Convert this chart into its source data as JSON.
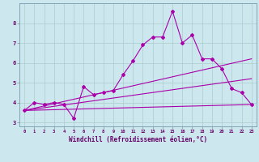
{
  "xlabel": "Windchill (Refroidissement éolien,°C)",
  "bg_color": "#cce8ee",
  "line_color": "#aa00aa",
  "grid_color": "#aacccc",
  "xlim": [
    -0.5,
    23.5
  ],
  "ylim": [
    2.8,
    9.0
  ],
  "xticks": [
    0,
    1,
    2,
    3,
    4,
    5,
    6,
    7,
    8,
    9,
    10,
    11,
    12,
    13,
    14,
    15,
    16,
    17,
    18,
    19,
    20,
    21,
    22,
    23
  ],
  "yticks": [
    3,
    4,
    5,
    6,
    7,
    8
  ],
  "line1_x": [
    0,
    1,
    2,
    3,
    4,
    5,
    6,
    7,
    8,
    9,
    10,
    11,
    12,
    13,
    14,
    15,
    16,
    17,
    18,
    19,
    20,
    21,
    22,
    23
  ],
  "line1_y": [
    3.6,
    4.0,
    3.9,
    4.0,
    3.9,
    3.2,
    4.8,
    4.4,
    4.5,
    4.6,
    5.4,
    6.1,
    6.9,
    7.3,
    7.3,
    8.6,
    7.0,
    7.4,
    6.2,
    6.2,
    5.7,
    4.7,
    4.5,
    3.9
  ],
  "line2_x": [
    0,
    23
  ],
  "line2_y": [
    3.6,
    3.9
  ],
  "line3_x": [
    0,
    23
  ],
  "line3_y": [
    3.6,
    5.2
  ],
  "line4_x": [
    0,
    23
  ],
  "line4_y": [
    3.6,
    6.2
  ]
}
